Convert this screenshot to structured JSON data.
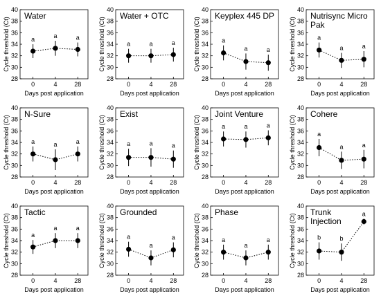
{
  "chart_data": [
    {
      "type": "line",
      "title": [
        "Water"
      ],
      "x_categories": [
        "0",
        "4",
        "28"
      ],
      "values": [
        32.8,
        33.3,
        33.1
      ],
      "error": [
        1.2,
        1.3,
        1.2
      ],
      "significance": [
        "a",
        "a",
        "a"
      ],
      "xlabel": "Days post application",
      "ylabel": "Cycle threshold (Ct)",
      "ylim": [
        28,
        40
      ],
      "yticks": [
        "28",
        "30",
        "32",
        "34",
        "36",
        "38",
        "40"
      ]
    },
    {
      "type": "line",
      "title": [
        "Water + OTC"
      ],
      "x_categories": [
        "0",
        "4",
        "28"
      ],
      "values": [
        32.0,
        32.0,
        32.2
      ],
      "error": [
        1.2,
        1.2,
        1.2
      ],
      "significance": [
        "a",
        "a",
        "a"
      ],
      "xlabel": "Days post application",
      "ylabel": "Cycle threshold (Ct)",
      "ylim": [
        28,
        40
      ],
      "yticks": [
        "28",
        "30",
        "32",
        "34",
        "36",
        "38",
        "40"
      ]
    },
    {
      "type": "line",
      "title": [
        "Keyplex 445 DP"
      ],
      "x_categories": [
        "0",
        "4",
        "28"
      ],
      "values": [
        32.5,
        31.0,
        30.8
      ],
      "error": [
        1.3,
        1.4,
        1.4
      ],
      "significance": [
        "a",
        "a",
        "a"
      ],
      "xlabel": "Days post application",
      "ylabel": "Cycle threshold (Ct)",
      "ylim": [
        28,
        40
      ],
      "yticks": [
        "28",
        "30",
        "32",
        "34",
        "36",
        "38",
        "40"
      ]
    },
    {
      "type": "line",
      "title": [
        "Nutrisync Micro",
        "Pak"
      ],
      "x_categories": [
        "0",
        "4",
        "28"
      ],
      "values": [
        33.0,
        31.2,
        31.4
      ],
      "error": [
        1.3,
        1.3,
        1.4
      ],
      "significance": [
        "a",
        "a",
        "a"
      ],
      "xlabel": "Days post application",
      "ylabel": "Cycle threshold (Ct)",
      "ylim": [
        28,
        40
      ],
      "yticks": [
        "28",
        "30",
        "32",
        "34",
        "36",
        "38",
        "40"
      ]
    },
    {
      "type": "line",
      "title": [
        "N-Sure"
      ],
      "x_categories": [
        "0",
        "4",
        "28"
      ],
      "values": [
        32.0,
        31.0,
        32.0
      ],
      "error": [
        1.3,
        1.8,
        1.3
      ],
      "significance": [
        "a",
        "a",
        "a"
      ],
      "xlabel": "Days post application",
      "ylabel": "Cycle threshold (Ct)",
      "ylim": [
        28,
        40
      ],
      "yticks": [
        "28",
        "30",
        "32",
        "34",
        "36",
        "38",
        "40"
      ]
    },
    {
      "type": "line",
      "title": [
        "Exist"
      ],
      "x_categories": [
        "0",
        "4",
        "28"
      ],
      "values": [
        31.4,
        31.4,
        31.1
      ],
      "error": [
        1.5,
        1.6,
        1.5
      ],
      "significance": [
        "a",
        "a",
        "a"
      ],
      "xlabel": "Days post application",
      "ylabel": "Cycle threshold (Ct)",
      "ylim": [
        28,
        40
      ],
      "yticks": [
        "28",
        "30",
        "32",
        "34",
        "36",
        "38",
        "40"
      ]
    },
    {
      "type": "line",
      "title": [
        "Joint Venture"
      ],
      "x_categories": [
        "0",
        "4",
        "28"
      ],
      "values": [
        34.6,
        34.5,
        34.8
      ],
      "error": [
        1.3,
        1.4,
        1.3
      ],
      "significance": [
        "a",
        "a",
        "a"
      ],
      "xlabel": "Days post application",
      "ylabel": "Cycle threshold (Ct)",
      "ylim": [
        28,
        40
      ],
      "yticks": [
        "28",
        "30",
        "32",
        "34",
        "36",
        "38",
        "40"
      ]
    },
    {
      "type": "line",
      "title": [
        "Cohere"
      ],
      "x_categories": [
        "0",
        "4",
        "28"
      ],
      "values": [
        33.1,
        30.9,
        31.1
      ],
      "error": [
        1.5,
        1.5,
        1.6
      ],
      "significance": [
        "a",
        "a",
        "a"
      ],
      "xlabel": "Days post application",
      "ylabel": "Cycle threshold (Ct)",
      "ylim": [
        28,
        40
      ],
      "yticks": [
        "28",
        "30",
        "32",
        "34",
        "36",
        "38",
        "40"
      ]
    },
    {
      "type": "line",
      "title": [
        "Tactic"
      ],
      "x_categories": [
        "0",
        "4",
        "28"
      ],
      "values": [
        32.9,
        34.0,
        34.0
      ],
      "error": [
        1.2,
        1.3,
        1.3
      ],
      "significance": [
        "a",
        "a",
        "a"
      ],
      "xlabel": "Days post application",
      "ylabel": "Cycle threshold (Ct)",
      "ylim": [
        28,
        40
      ],
      "yticks": [
        "28",
        "30",
        "32",
        "34",
        "36",
        "38",
        "40"
      ]
    },
    {
      "type": "line",
      "title": [
        "Grounded"
      ],
      "x_categories": [
        "0",
        "4",
        "28"
      ],
      "values": [
        32.5,
        31.0,
        32.4
      ],
      "error": [
        1.3,
        1.3,
        1.3
      ],
      "significance": [
        "a",
        "a",
        "a"
      ],
      "xlabel": "Days post application",
      "ylabel": "Cycle threshold (Ct)",
      "ylim": [
        28,
        40
      ],
      "yticks": [
        "28",
        "30",
        "32",
        "34",
        "36",
        "38",
        "40"
      ]
    },
    {
      "type": "line",
      "title": [
        "Phase"
      ],
      "x_categories": [
        "0",
        "4",
        "28"
      ],
      "values": [
        32.0,
        31.0,
        32.0
      ],
      "error": [
        1.3,
        1.3,
        1.3
      ],
      "significance": [
        "a",
        "a",
        "a"
      ],
      "xlabel": "Days post application",
      "ylabel": "Cycle threshold (Ct)",
      "ylim": [
        28,
        40
      ],
      "yticks": [
        "28",
        "30",
        "32",
        "34",
        "36",
        "38",
        "40"
      ]
    },
    {
      "type": "line",
      "title": [
        "Trunk",
        "Injection"
      ],
      "x_categories": [
        "0",
        "4",
        "28"
      ],
      "values": [
        32.2,
        32.0,
        37.3
      ],
      "error": [
        1.5,
        1.5,
        0.5
      ],
      "significance": [
        "b",
        "b",
        "a"
      ],
      "xlabel": "Days post application",
      "ylabel": "Cycle threshold (Ct)",
      "ylim": [
        28,
        40
      ],
      "yticks": [
        "28",
        "30",
        "32",
        "34",
        "36",
        "38",
        "40"
      ]
    }
  ]
}
